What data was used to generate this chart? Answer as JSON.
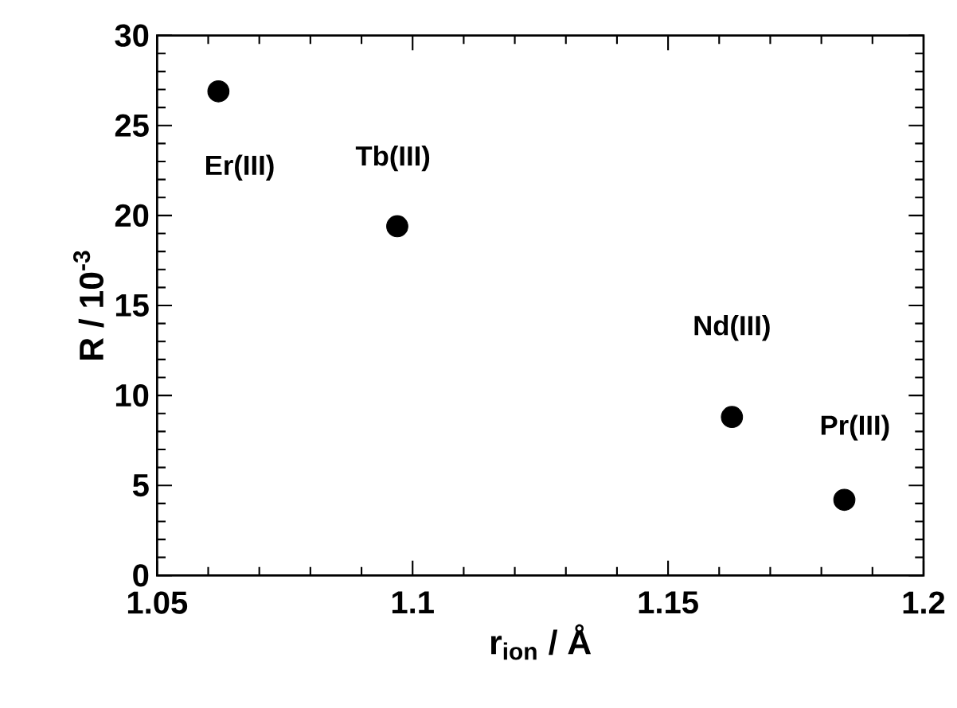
{
  "chart_data": {
    "type": "scatter",
    "xlabel": "r$_{ion}$ / Å",
    "ylabel": "R / 10$^{-3}$",
    "x": [
      1.062,
      1.097,
      1.1625,
      1.1845
    ],
    "series": [
      {
        "color": "#000000",
        "values": [
          26.9,
          19.4,
          8.8,
          4.2
        ]
      }
    ],
    "xlim": [
      1.05,
      1.2
    ],
    "ylim": [
      0,
      30
    ],
    "xticks": [
      1.05,
      1.1,
      1.15,
      1.2
    ],
    "yticks": [
      0,
      5,
      10,
      15,
      20,
      25,
      30
    ],
    "grid": false,
    "annotations": [
      {
        "text": "Er(III)",
        "x": 1.062,
        "y": 26.9
      },
      {
        "text": "Tb(III)",
        "x": 1.097,
        "y": 19.4
      },
      {
        "text": "Nd(III)",
        "x": 1.1625,
        "y": 8.8
      },
      {
        "text": "Pr(III)",
        "x": 1.1845,
        "y": 4.2
      }
    ]
  }
}
